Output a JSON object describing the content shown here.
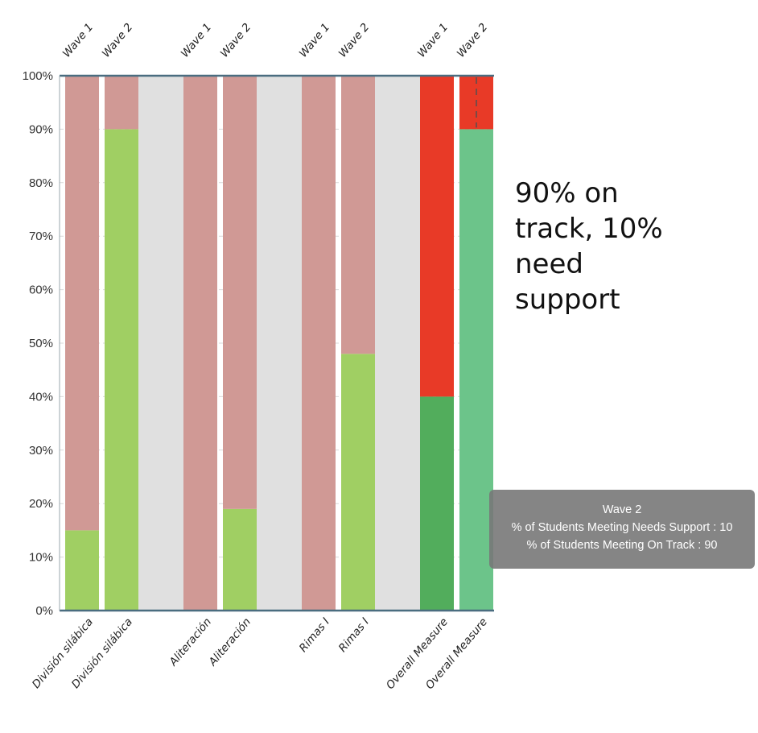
{
  "chart_data": {
    "type": "bar",
    "stacked": true,
    "percent": true,
    "categories": [
      "División silábica",
      "División silábica",
      "Aliteración",
      "Aliteración",
      "Rimas I",
      "Rimas I",
      "Overall Measure",
      "Overall Measure"
    ],
    "waves": [
      "Wave 1",
      "Wave 2",
      "Wave 1",
      "Wave 2",
      "Wave 1",
      "Wave 2",
      "Wave 1",
      "Wave 2"
    ],
    "series": [
      {
        "key": "on_track",
        "values": [
          15,
          90,
          0,
          19,
          0,
          48,
          40,
          90
        ]
      },
      {
        "key": "needs_support",
        "values": [
          85,
          10,
          100,
          81,
          100,
          52,
          60,
          10
        ]
      }
    ],
    "ylim": [
      0,
      100
    ],
    "yticks": [
      "0%",
      "10%",
      "20%",
      "30%",
      "40%",
      "50%",
      "60%",
      "70%",
      "80%",
      "90%",
      "100%"
    ],
    "grid": true,
    "colors": {
      "on_track": "#a0cf63",
      "needs_support": "#d09995",
      "overall_on_track_wave1": "#52ad5c",
      "overall_needs_support_wave1": "#e83a27",
      "overall_on_track_wave2": "#6cc48a",
      "overall_needs_support_wave2": "#e83a27",
      "separator": "#e0e0e0",
      "axis": "#4a6d80"
    }
  },
  "annotation": {
    "lines": [
      "90% on",
      "track, 10%",
      "need",
      "support"
    ]
  },
  "tooltip": {
    "title": "Wave 2",
    "line1": "% of Students Meeting Needs Support : 10",
    "line2": "% of Students Meeting On Track : 90"
  }
}
